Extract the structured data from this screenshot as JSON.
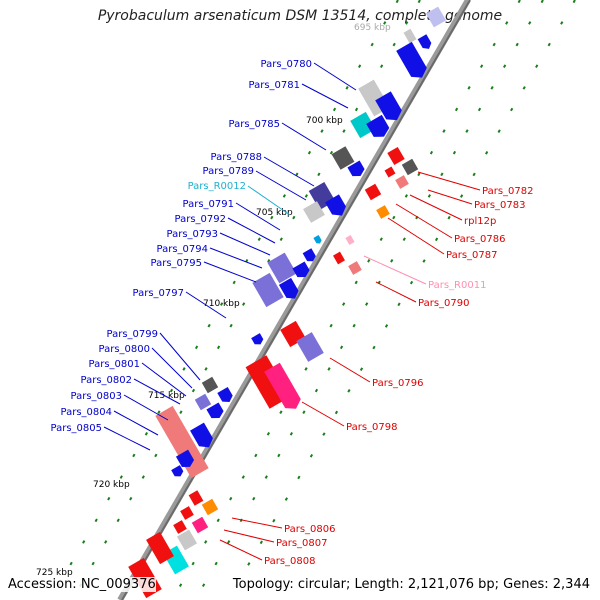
{
  "title": "Pyrobaculum arsenaticum DSM 13514, complete genome",
  "footer": {
    "accession": "Accession: NC_009376",
    "summary": "Topology: circular; Length: 2,121,076 bp; Genes: 2,344"
  },
  "colors": {
    "forward_cds": "#1010e6",
    "forward_light": "#7b70d8",
    "reverse_cds": "#f01010",
    "reverse_light": "#f07a7a",
    "pseudo": "#888888",
    "trna_fwd": "#00c8c8",
    "trna_rev": "#ff9ec0",
    "orange": "#ff8c00",
    "label_fwd": "#0000cc",
    "label_rev": "#e00000",
    "label_trna_fwd": "#20b0d0",
    "label_trna_rev": "#ff8fb0"
  },
  "ticks": [
    "695 kbp",
    "700 kbp",
    "705 kbp",
    "710 kbp",
    "715 kbp",
    "720 kbp",
    "725 kbp"
  ],
  "left_labels": [
    "Pars_0780",
    "Pars_0781",
    "Pars_0785",
    "Pars_0788",
    "Pars_0789",
    "Pars_R0012",
    "Pars_0791",
    "Pars_0792",
    "Pars_0793",
    "Pars_0794",
    "Pars_0795",
    "Pars_0797",
    "Pars_0799",
    "Pars_0800",
    "Pars_0801",
    "Pars_0802",
    "Pars_0803",
    "Pars_0804",
    "Pars_0805"
  ],
  "right_labels": [
    "Pars_0782",
    "Pars_0783",
    "rpl12p",
    "Pars_0786",
    "Pars_0787",
    "Pars_R0011",
    "Pars_0790",
    "Pars_0796",
    "Pars_0798",
    "Pars_0806",
    "Pars_0807",
    "Pars_0808"
  ]
}
